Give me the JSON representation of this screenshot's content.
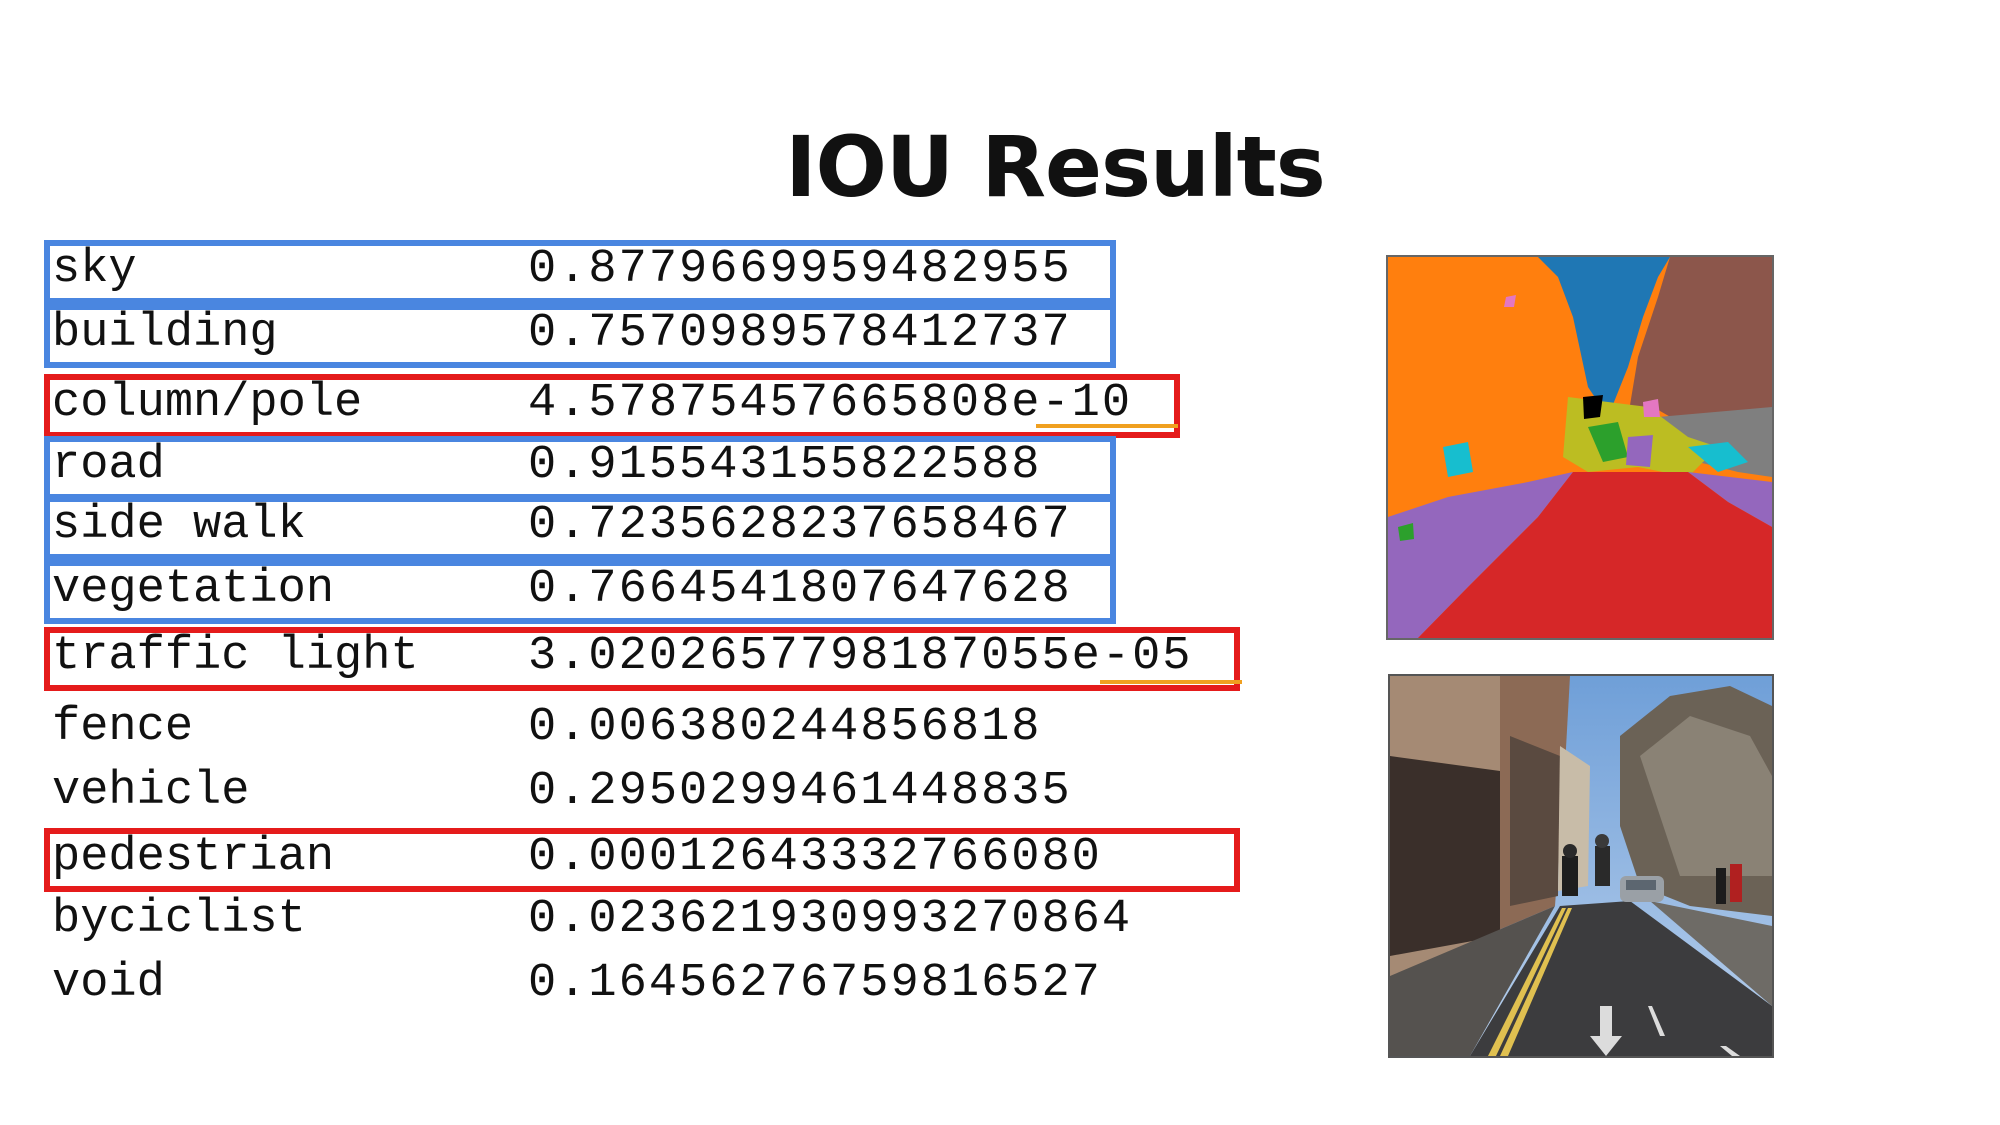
{
  "title": "IOU Results",
  "rows": [
    {
      "label": "sky",
      "value": "0.8779669959482955",
      "highlight": "blue"
    },
    {
      "label": "building",
      "value": "0.7570989578412737",
      "highlight": "blue"
    },
    {
      "label": "column/pole",
      "value": "4.57875457665808e-10",
      "highlight": "red"
    },
    {
      "label": "road",
      "value": "0.915543155822588",
      "highlight": "blue"
    },
    {
      "label": "side walk",
      "value": "0.7235628237658467",
      "highlight": "blue"
    },
    {
      "label": "vegetation",
      "value": "0.7664541807647628",
      "highlight": "blue"
    },
    {
      "label": "traffic light",
      "value": "3.0202657798187055e-05",
      "highlight": "red"
    },
    {
      "label": "fence",
      "value": "0.006380244856818",
      "highlight": "none"
    },
    {
      "label": "vehicle",
      "value": "0.2950299461448835",
      "highlight": "none"
    },
    {
      "label": "pedestrian",
      "value": "0.00012643332766080",
      "highlight": "red"
    },
    {
      "label": "byciclist",
      "value": "0.023621930993270864",
      "highlight": "none"
    },
    {
      "label": "void",
      "value": "0.16456276759816527",
      "highlight": "none"
    }
  ],
  "colors": {
    "blue_highlight": "#4a86e0",
    "red_highlight": "#e51b1b",
    "underline": "#f0a020"
  },
  "images": {
    "segmentation": "segmentation-map",
    "street": "street-photo"
  }
}
